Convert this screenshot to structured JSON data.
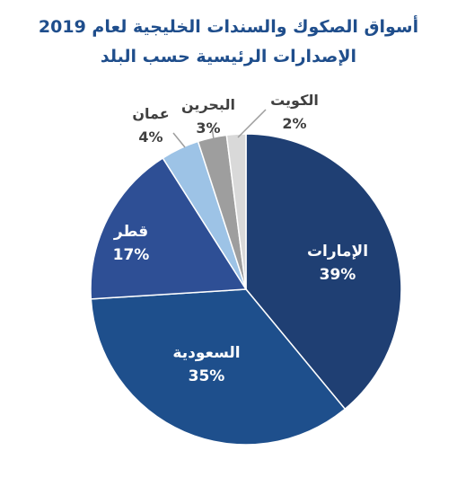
{
  "chart_data": {
    "type": "pie",
    "title": "أسواق الصكوك والسندات الخليجية لعام 2019",
    "subtitle": "الإصدارات الرئيسية حسب البلد",
    "categories": [
      "الإمارات",
      "السعودية",
      "قطر",
      "عمان",
      "البحرين",
      "الكويت"
    ],
    "values": [
      39,
      35,
      17,
      4,
      3,
      2
    ],
    "value_labels": [
      "39%",
      "35%",
      "17%",
      "4%",
      "3%",
      "2%"
    ],
    "colors": [
      "#1f3f73",
      "#1e4f8c",
      "#2e4f95",
      "#9dc3e6",
      "#9e9e9e",
      "#d9d9d9"
    ],
    "start_angle_deg": 0,
    "direction": "clockwise",
    "legend": "none"
  }
}
